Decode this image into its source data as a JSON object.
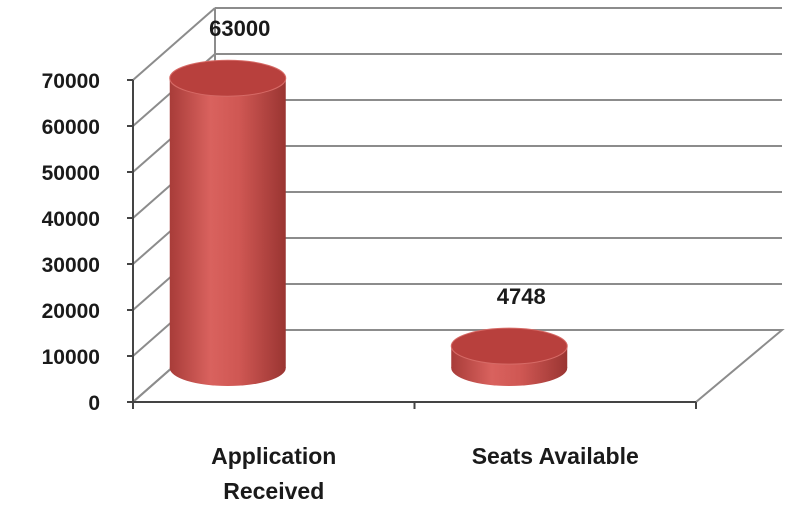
{
  "chart_data": {
    "type": "bar",
    "style": "3d-cylinder",
    "categories": [
      "Application\nReceived",
      "Seats Available"
    ],
    "values": [
      63000,
      4748
    ],
    "data_labels": [
      "63000",
      "4748"
    ],
    "title": "",
    "xlabel": "",
    "ylabel": "",
    "ylim": [
      0,
      70000
    ],
    "yticks": [
      "0",
      "10000",
      "20000",
      "30000",
      "40000",
      "50000",
      "60000",
      "70000"
    ],
    "grid": true,
    "legend": "none",
    "colors": {
      "bar_main": "#c0504d",
      "bar_light": "#e07b78",
      "bar_dark": "#8e2b28",
      "top": "#b8403d",
      "grid": "#8c8c8c"
    }
  }
}
